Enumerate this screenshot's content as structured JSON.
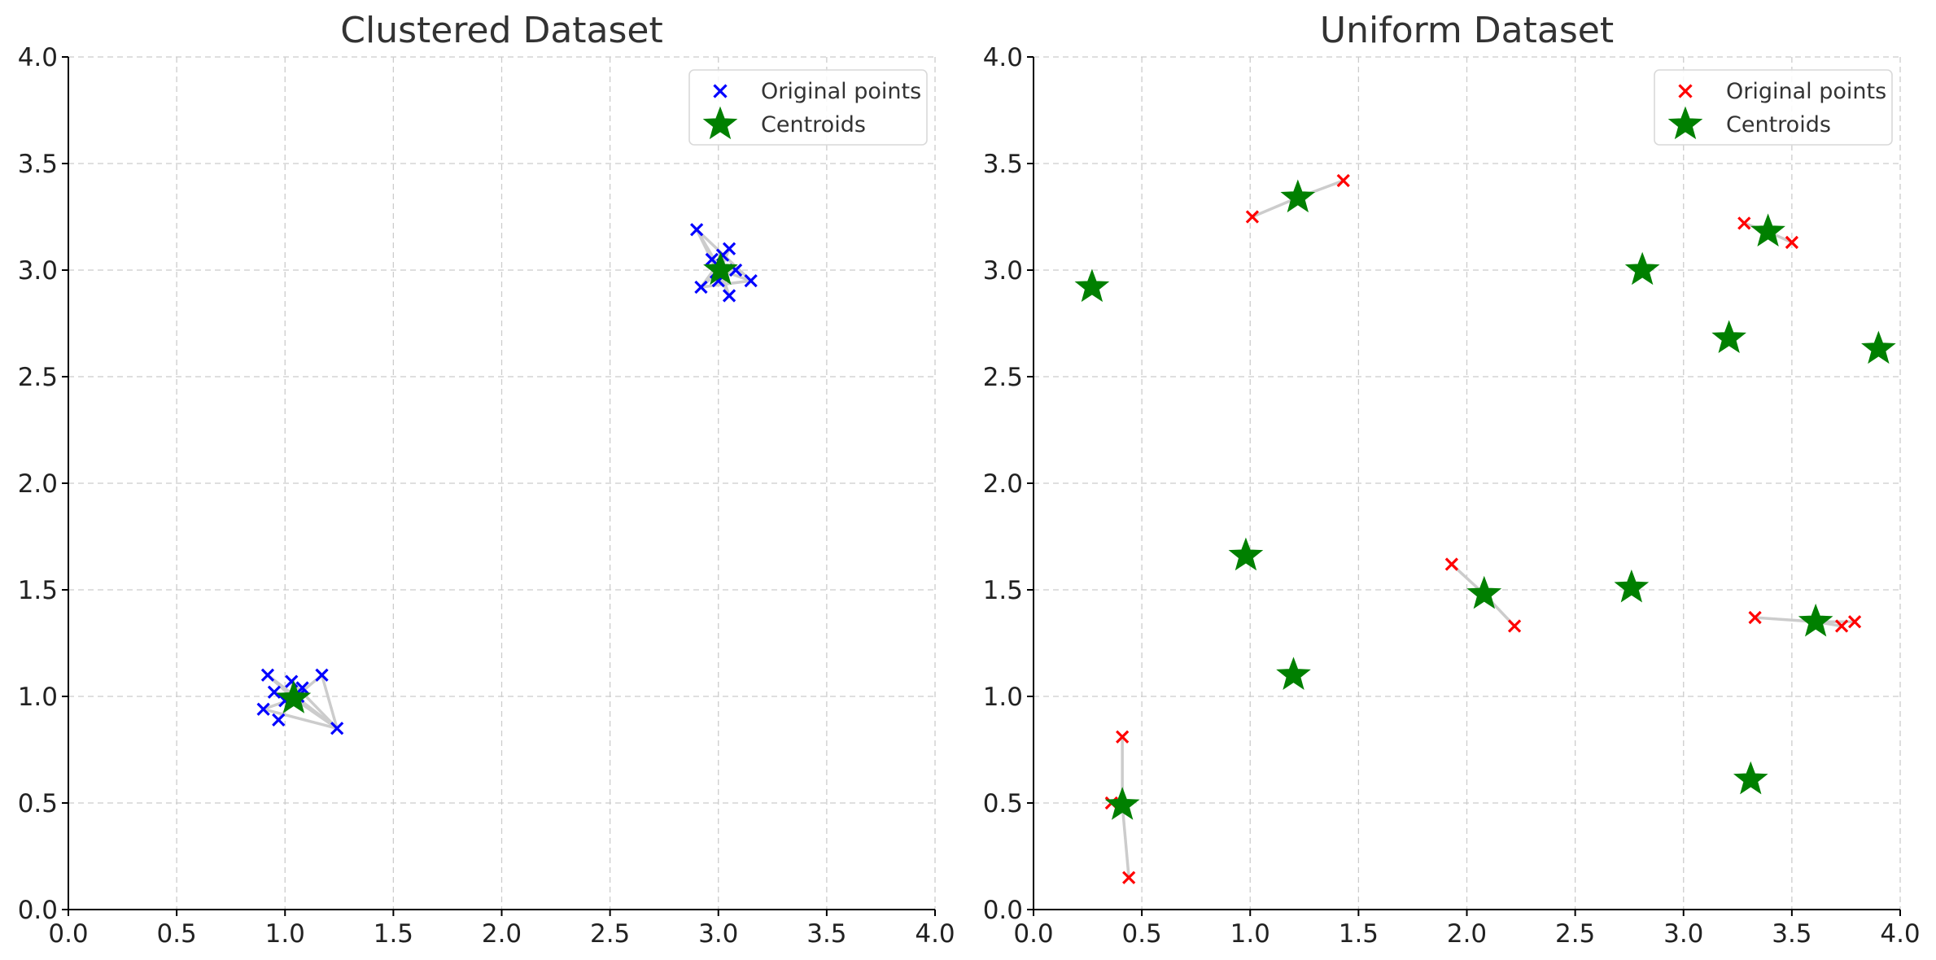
{
  "chart_data": [
    {
      "type": "scatter",
      "title": "Clustered Dataset",
      "xlim": [
        0,
        4
      ],
      "ylim": [
        0,
        4
      ],
      "xticks": [
        "0.0",
        "0.5",
        "1.0",
        "1.5",
        "2.0",
        "2.5",
        "3.0",
        "3.5",
        "4.0"
      ],
      "yticks": [
        "0.0",
        "0.5",
        "1.0",
        "1.5",
        "2.0",
        "2.5",
        "3.0",
        "3.5",
        "4.0"
      ],
      "grid": true,
      "legend_position": "top-right",
      "colors": {
        "points": "#0000ff",
        "centroids": "#008000",
        "links": "#cccccc"
      },
      "series": [
        {
          "name": "Original points",
          "marker": "x",
          "color": "#0000ff",
          "points": [
            [
              0.92,
              1.1
            ],
            [
              1.03,
              1.07
            ],
            [
              1.17,
              1.1
            ],
            [
              0.9,
              0.94
            ],
            [
              0.97,
              0.89
            ],
            [
              1.0,
              0.98
            ],
            [
              1.08,
              1.04
            ],
            [
              1.24,
              0.85
            ],
            [
              1.06,
              1.0
            ],
            [
              0.95,
              1.02
            ],
            [
              2.9,
              3.19
            ],
            [
              3.05,
              3.1
            ],
            [
              2.92,
              2.92
            ],
            [
              3.0,
              2.95
            ],
            [
              3.05,
              2.88
            ],
            [
              3.15,
              2.95
            ],
            [
              3.08,
              3.0
            ],
            [
              2.97,
              3.05
            ],
            [
              3.02,
              3.07
            ],
            [
              2.99,
              2.99
            ]
          ]
        },
        {
          "name": "Centroids",
          "marker": "star",
          "color": "#008000",
          "points": [
            [
              1.04,
              0.99
            ],
            [
              3.01,
              3.0
            ]
          ]
        }
      ],
      "links": [
        [
          [
            0.92,
            1.1
          ],
          [
            1.04,
            0.99
          ]
        ],
        [
          [
            1.03,
            1.07
          ],
          [
            1.04,
            0.99
          ]
        ],
        [
          [
            1.17,
            1.1
          ],
          [
            1.04,
            0.99
          ]
        ],
        [
          [
            0.9,
            0.94
          ],
          [
            1.04,
            0.99
          ]
        ],
        [
          [
            0.97,
            0.89
          ],
          [
            1.04,
            0.99
          ]
        ],
        [
          [
            1.0,
            0.98
          ],
          [
            1.04,
            0.99
          ]
        ],
        [
          [
            1.08,
            1.04
          ],
          [
            1.04,
            0.99
          ]
        ],
        [
          [
            1.24,
            0.85
          ],
          [
            1.04,
            0.99
          ]
        ],
        [
          [
            1.06,
            1.0
          ],
          [
            1.04,
            0.99
          ]
        ],
        [
          [
            0.95,
            1.02
          ],
          [
            1.04,
            0.99
          ]
        ],
        [
          [
            0.92,
            1.1
          ],
          [
            1.24,
            0.85
          ]
        ],
        [
          [
            0.9,
            0.94
          ],
          [
            1.24,
            0.85
          ]
        ],
        [
          [
            1.17,
            1.1
          ],
          [
            1.24,
            0.85
          ]
        ],
        [
          [
            1.03,
            1.07
          ],
          [
            1.24,
            0.85
          ]
        ],
        [
          [
            2.9,
            3.19
          ],
          [
            3.01,
            3.0
          ]
        ],
        [
          [
            3.05,
            3.1
          ],
          [
            3.01,
            3.0
          ]
        ],
        [
          [
            2.92,
            2.92
          ],
          [
            3.01,
            3.0
          ]
        ],
        [
          [
            3.0,
            2.95
          ],
          [
            3.01,
            3.0
          ]
        ],
        [
          [
            3.05,
            2.88
          ],
          [
            3.01,
            3.0
          ]
        ],
        [
          [
            3.15,
            2.95
          ],
          [
            3.01,
            3.0
          ]
        ],
        [
          [
            3.08,
            3.0
          ],
          [
            3.01,
            3.0
          ]
        ],
        [
          [
            2.97,
            3.05
          ],
          [
            3.01,
            3.0
          ]
        ],
        [
          [
            3.02,
            3.07
          ],
          [
            3.01,
            3.0
          ]
        ],
        [
          [
            2.99,
            2.99
          ],
          [
            3.01,
            3.0
          ]
        ],
        [
          [
            2.9,
            3.19
          ],
          [
            3.15,
            2.95
          ]
        ],
        [
          [
            2.9,
            3.19
          ],
          [
            3.05,
            2.88
          ]
        ],
        [
          [
            3.05,
            3.1
          ],
          [
            2.92,
            2.92
          ]
        ],
        [
          [
            3.15,
            2.95
          ],
          [
            2.92,
            2.92
          ]
        ]
      ]
    },
    {
      "type": "scatter",
      "title": "Uniform Dataset",
      "xlim": [
        0,
        4
      ],
      "ylim": [
        0,
        4
      ],
      "xticks": [
        "0.0",
        "0.5",
        "1.0",
        "1.5",
        "2.0",
        "2.5",
        "3.0",
        "3.5",
        "4.0"
      ],
      "yticks": [
        "0.0",
        "0.5",
        "1.0",
        "1.5",
        "2.0",
        "2.5",
        "3.0",
        "3.5",
        "4.0"
      ],
      "grid": true,
      "legend_position": "top-right",
      "colors": {
        "points": "#ff0000",
        "centroids": "#008000",
        "links": "#cccccc"
      },
      "series": [
        {
          "name": "Original points",
          "marker": "x",
          "color": "#ff0000",
          "points": [
            [
              1.01,
              3.25
            ],
            [
              1.43,
              3.42
            ],
            [
              3.28,
              3.22
            ],
            [
              3.5,
              3.13
            ],
            [
              1.93,
              1.62
            ],
            [
              2.22,
              1.33
            ],
            [
              3.33,
              1.37
            ],
            [
              3.73,
              1.33
            ],
            [
              3.79,
              1.35
            ],
            [
              0.41,
              0.81
            ],
            [
              0.36,
              0.5
            ],
            [
              0.44,
              0.15
            ]
          ]
        },
        {
          "name": "Centroids",
          "marker": "star",
          "color": "#008000",
          "points": [
            [
              1.22,
              3.34
            ],
            [
              3.39,
              3.18
            ],
            [
              0.27,
              2.92
            ],
            [
              2.81,
              3.0
            ],
            [
              3.21,
              2.68
            ],
            [
              3.9,
              2.63
            ],
            [
              0.98,
              1.66
            ],
            [
              2.08,
              1.48
            ],
            [
              2.76,
              1.51
            ],
            [
              3.61,
              1.35
            ],
            [
              1.2,
              1.1
            ],
            [
              3.31,
              0.61
            ],
            [
              0.41,
              0.49
            ]
          ]
        }
      ],
      "links": [
        [
          [
            1.01,
            3.25
          ],
          [
            1.22,
            3.34
          ]
        ],
        [
          [
            1.43,
            3.42
          ],
          [
            1.22,
            3.34
          ]
        ],
        [
          [
            3.28,
            3.22
          ],
          [
            3.39,
            3.18
          ]
        ],
        [
          [
            3.5,
            3.13
          ],
          [
            3.39,
            3.18
          ]
        ],
        [
          [
            1.93,
            1.62
          ],
          [
            2.08,
            1.48
          ]
        ],
        [
          [
            2.22,
            1.33
          ],
          [
            2.08,
            1.48
          ]
        ],
        [
          [
            3.33,
            1.37
          ],
          [
            3.61,
            1.35
          ]
        ],
        [
          [
            3.73,
            1.33
          ],
          [
            3.61,
            1.35
          ]
        ],
        [
          [
            3.79,
            1.35
          ],
          [
            3.61,
            1.35
          ]
        ],
        [
          [
            0.41,
            0.81
          ],
          [
            0.41,
            0.49
          ]
        ],
        [
          [
            0.36,
            0.5
          ],
          [
            0.41,
            0.49
          ]
        ],
        [
          [
            0.44,
            0.15
          ],
          [
            0.41,
            0.49
          ]
        ]
      ]
    }
  ]
}
